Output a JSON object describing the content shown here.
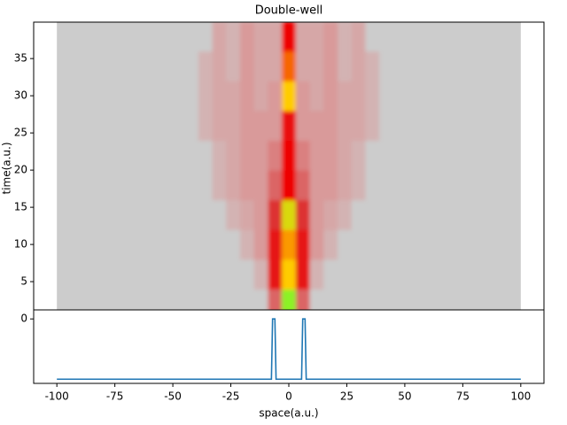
{
  "chart_data": [
    {
      "type": "heatmap",
      "title": "Double-well",
      "ylabel": "time(a.u.)",
      "xlim": [
        -110,
        110
      ],
      "ylim": [
        1.2,
        39.9
      ],
      "yticks": [
        5,
        10,
        15,
        20,
        25,
        30,
        35
      ],
      "extent": [
        -100,
        100
      ],
      "background": "#cccccc",
      "colormap": [
        "#cccccc",
        "#d99a9a",
        "#dd3030",
        "#ee0000",
        "#ffcc00",
        "#66ff33"
      ],
      "x": [
        -42,
        -36,
        -30,
        -24,
        -18,
        -12,
        -6,
        0,
        6,
        12,
        18,
        24,
        30,
        36,
        42
      ],
      "y": [
        2,
        6,
        10,
        14,
        18,
        22,
        26,
        30,
        34,
        38
      ],
      "z": [
        [
          0,
          0,
          0,
          0,
          0,
          0,
          0.3,
          0.95,
          0.3,
          0,
          0,
          0,
          0,
          0,
          0
        ],
        [
          0,
          0,
          0,
          0,
          0,
          0.1,
          0.5,
          0.8,
          0.5,
          0.1,
          0,
          0,
          0,
          0,
          0
        ],
        [
          0,
          0,
          0,
          0,
          0.1,
          0.2,
          0.5,
          0.75,
          0.5,
          0.2,
          0.1,
          0,
          0,
          0,
          0
        ],
        [
          0,
          0,
          0,
          0.1,
          0.15,
          0.2,
          0.4,
          0.85,
          0.4,
          0.2,
          0.15,
          0.1,
          0,
          0,
          0
        ],
        [
          0,
          0,
          0.1,
          0.15,
          0.2,
          0.2,
          0.3,
          0.6,
          0.3,
          0.2,
          0.2,
          0.15,
          0.1,
          0,
          0
        ],
        [
          0,
          0,
          0.1,
          0.15,
          0.2,
          0.2,
          0.25,
          0.6,
          0.25,
          0.2,
          0.2,
          0.15,
          0.1,
          0,
          0
        ],
        [
          0,
          0.1,
          0.15,
          0.15,
          0.2,
          0.2,
          0.2,
          0.55,
          0.2,
          0.2,
          0.2,
          0.15,
          0.15,
          0.1,
          0
        ],
        [
          0,
          0.1,
          0.15,
          0.15,
          0.2,
          0.15,
          0.2,
          0.8,
          0.2,
          0.15,
          0.2,
          0.15,
          0.15,
          0.1,
          0
        ],
        [
          0,
          0.1,
          0.15,
          0.1,
          0.2,
          0.15,
          0.15,
          0.7,
          0.15,
          0.15,
          0.2,
          0.1,
          0.15,
          0.1,
          0
        ],
        [
          0,
          0,
          0.15,
          0.1,
          0.2,
          0.15,
          0.15,
          0.6,
          0.15,
          0.15,
          0.2,
          0.1,
          0.15,
          0,
          0
        ]
      ]
    },
    {
      "type": "line",
      "xlabel": "space(a.u.)",
      "color": "#1f77b4",
      "xlim": [
        -110,
        110
      ],
      "ylim": [
        -1.07,
        0.15
      ],
      "xticks": [
        -100,
        -75,
        -50,
        -25,
        0,
        25,
        50,
        75,
        100
      ],
      "yticks": [
        0
      ],
      "x": [
        -100,
        -7.5,
        -7,
        -6,
        -5.5,
        5.5,
        6,
        7,
        7.5,
        100
      ],
      "values": [
        -1,
        -1,
        0,
        0,
        -1,
        -1,
        0,
        0,
        -1,
        -1
      ]
    }
  ]
}
